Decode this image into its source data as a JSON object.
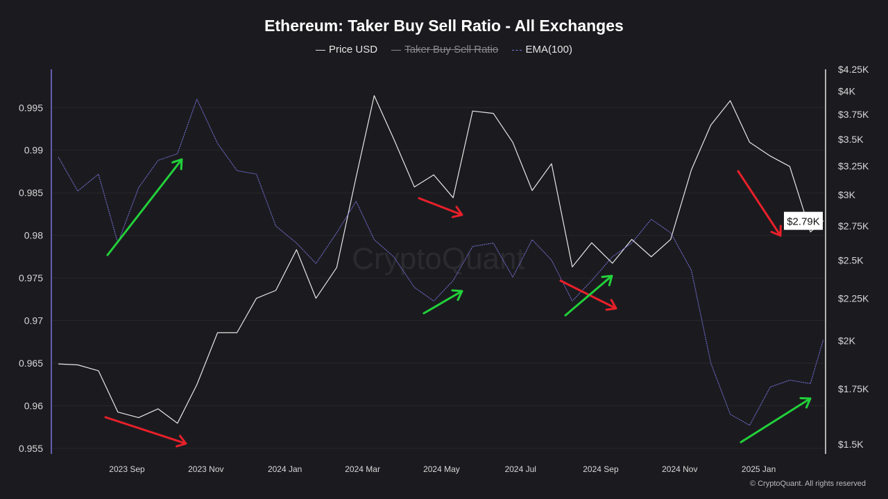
{
  "chart_data": {
    "type": "line",
    "title": "Ethereum: Taker Buy Sell Ratio - All Exchanges",
    "legend": [
      {
        "name": "Price USD",
        "enabled": true,
        "color": "#e8e8e8"
      },
      {
        "name": "Taker Buy Sell Ratio",
        "enabled": false,
        "color": "#8a8a8f"
      },
      {
        "name": "EMA(100)",
        "enabled": true,
        "color": "#7b74e0"
      }
    ],
    "legend_placement": "top-center",
    "grid": true,
    "x_ticks": [
      {
        "label": "2023 Sep",
        "date": "2023-09-01"
      },
      {
        "label": "2023 Nov",
        "date": "2023-11-01"
      },
      {
        "label": "2024 Jan",
        "date": "2024-01-01"
      },
      {
        "label": "2024 Mar",
        "date": "2024-03-01"
      },
      {
        "label": "2024 May",
        "date": "2024-05-01"
      },
      {
        "label": "2024 Jul",
        "date": "2024-07-01"
      },
      {
        "label": "2024 Sep",
        "date": "2024-09-01"
      },
      {
        "label": "2024 Nov",
        "date": "2024-11-01"
      },
      {
        "label": "2025 Jan",
        "date": "2025-01-01"
      }
    ],
    "left_axis": {
      "scale": "linear",
      "ylim": [
        0.9545,
        0.9995
      ],
      "ticks": [
        "0.955",
        "0.96",
        "0.965",
        "0.97",
        "0.975",
        "0.98",
        "0.985",
        "0.99",
        "0.995"
      ]
    },
    "right_axis": {
      "scale": "log",
      "ylim": [
        1500,
        4250
      ],
      "ticks": [
        {
          "v": 1500,
          "label": "$1.5K"
        },
        {
          "v": 1750,
          "label": "$1.75K"
        },
        {
          "v": 2000,
          "label": "$2K"
        },
        {
          "v": 2250,
          "label": "$2.25K"
        },
        {
          "v": 2500,
          "label": "$2.5K"
        },
        {
          "v": 2750,
          "label": "$2.75K"
        },
        {
          "v": 3000,
          "label": "$3K"
        },
        {
          "v": 3250,
          "label": "$3.25K"
        },
        {
          "v": 3500,
          "label": "$3.5K"
        },
        {
          "v": 3750,
          "label": "$3.75K"
        },
        {
          "v": 4000,
          "label": "$4K"
        },
        {
          "v": 4250,
          "label": "$4.25K"
        }
      ]
    },
    "current_price_label": "$2.79K",
    "dates": [
      "2023-07-10",
      "2023-07-25",
      "2023-08-10",
      "2023-08-25",
      "2023-09-10",
      "2023-09-25",
      "2023-10-10",
      "2023-10-25",
      "2023-11-10",
      "2023-11-25",
      "2023-12-10",
      "2023-12-25",
      "2024-01-10",
      "2024-01-25",
      "2024-02-10",
      "2024-02-25",
      "2024-03-10",
      "2024-03-25",
      "2024-04-10",
      "2024-04-25",
      "2024-05-10",
      "2024-05-25",
      "2024-06-10",
      "2024-06-25",
      "2024-07-10",
      "2024-07-25",
      "2024-08-10",
      "2024-08-25",
      "2024-09-10",
      "2024-09-25",
      "2024-10-10",
      "2024-10-25",
      "2024-11-10",
      "2024-11-25",
      "2024-12-10",
      "2024-12-25",
      "2025-01-10",
      "2025-01-25",
      "2025-02-10",
      "2025-02-20"
    ],
    "series": [
      {
        "name": "Price USD",
        "axis": "right",
        "values": [
          1875,
          1870,
          1840,
          1640,
          1615,
          1655,
          1590,
          1770,
          2045,
          2045,
          2250,
          2300,
          2575,
          2250,
          2450,
          3150,
          3950,
          3505,
          3065,
          3170,
          2975,
          3785,
          3760,
          3470,
          3035,
          3270,
          2455,
          2625,
          2480,
          2650,
          2525,
          2650,
          3215,
          3640,
          3895,
          3470,
          3340,
          3245,
          2705,
          2790
        ]
      },
      {
        "name": "EMA(100)",
        "axis": "left",
        "values": [
          0.9892,
          0.9852,
          0.9872,
          0.9791,
          0.9856,
          0.9888,
          0.9896,
          0.996,
          0.9908,
          0.9876,
          0.9872,
          0.9811,
          0.9791,
          0.9767,
          0.9803,
          0.984,
          0.9795,
          0.9775,
          0.9739,
          0.9723,
          0.9747,
          0.9787,
          0.9791,
          0.9751,
          0.9795,
          0.9771,
          0.9723,
          0.9747,
          0.9775,
          0.9791,
          0.9819,
          0.9803,
          0.9759,
          0.965,
          0.959,
          0.9577,
          0.9622,
          0.963,
          0.9626,
          0.9678
        ]
      }
    ],
    "annotation_colors": {
      "up": "#22d13a",
      "down": "#e8202a"
    },
    "watermark": "CryptoQuant"
  },
  "footer": "© CryptoQuant. All rights reserved"
}
